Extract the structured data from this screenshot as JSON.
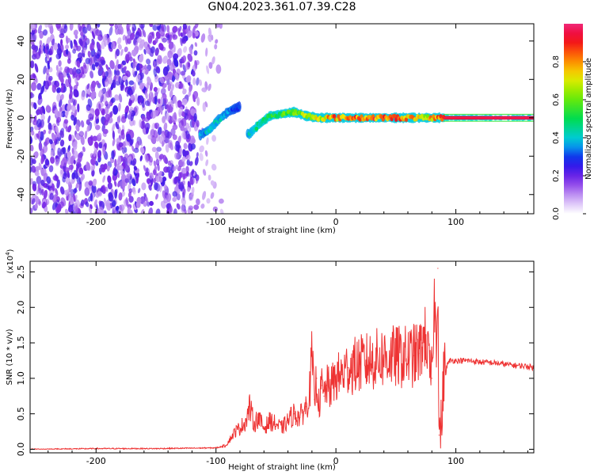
{
  "title": "GN04.2023.361.07.39.C28",
  "chart_data": [
    {
      "type": "heatmap",
      "title": "GN04.2023.361.07.39.C28",
      "xlabel": "Height of straight line (km)",
      "ylabel": "Frequency (Hz)",
      "xlim": [
        -255,
        165
      ],
      "ylim": [
        -50,
        49
      ],
      "x_ticks": [
        -200,
        -100,
        0,
        100
      ],
      "y_ticks": [
        -40,
        -20,
        0,
        20,
        40
      ],
      "x_tick_labels": [
        "-200",
        "-100",
        "0",
        "100"
      ],
      "y_tick_labels": [
        "-40",
        "-20",
        "0",
        "20",
        "40"
      ],
      "colorbar": {
        "label": "Normalized spectral amplitude",
        "range": [
          0,
          1
        ],
        "ticks": [
          0.0,
          0.2,
          0.4,
          0.6,
          0.8
        ],
        "tick_labels": [
          "0.0",
          "0.2",
          "0.4",
          "0.6",
          "0.8"
        ],
        "colormap": "rainbow"
      },
      "regions": [
        {
          "name": "noise",
          "x_range": [
            -255,
            -115
          ],
          "freq_range": [
            -50,
            49
          ],
          "amplitude": 0.1
        },
        {
          "name": "sparse",
          "x_range": [
            -115,
            -95
          ],
          "freq_range": [
            -50,
            49
          ],
          "amplitude": 0.03
        }
      ],
      "ridge": [
        {
          "x": -113,
          "f": -9,
          "amplitude": 0.35
        },
        {
          "x": -105,
          "f": -6,
          "amplitude": 0.4
        },
        {
          "x": -98,
          "f": -1,
          "amplitude": 0.4
        },
        {
          "x": -90,
          "f": 3,
          "amplitude": 0.35
        },
        {
          "x": -80,
          "f": 6,
          "amplitude": 0.3
        },
        {
          "x": -73,
          "f": -9,
          "amplitude": 0.4
        },
        {
          "x": -65,
          "f": -4,
          "amplitude": 0.45
        },
        {
          "x": -55,
          "f": 1,
          "amplitude": 0.5
        },
        {
          "x": -45,
          "f": 2,
          "amplitude": 0.55
        },
        {
          "x": -35,
          "f": 3,
          "amplitude": 0.6
        },
        {
          "x": -25,
          "f": 1,
          "amplitude": 0.65
        },
        {
          "x": -15,
          "f": 0,
          "amplitude": 0.7
        },
        {
          "x": 0,
          "f": 0,
          "amplitude": 0.8
        },
        {
          "x": 30,
          "f": 0,
          "amplitude": 0.85
        },
        {
          "x": 60,
          "f": 0,
          "amplitude": 0.8
        },
        {
          "x": 72,
          "f": 0,
          "amplitude": 0.65
        },
        {
          "x": 90,
          "f": 0,
          "amplitude": 0.9
        },
        {
          "x": 130,
          "f": 0,
          "amplitude": 0.95
        },
        {
          "x": 165,
          "f": 0,
          "amplitude": 0.95
        }
      ]
    },
    {
      "type": "line",
      "xlabel": "Height of straight line (km)",
      "ylabel": "SNR (10 * v/v)",
      "y_multiplier_label": "(x10",
      "y_multiplier_exponent": "4",
      "y_multiplier_close": ")",
      "xlim": [
        -255,
        165
      ],
      "ylim": [
        -0.05,
        2.65
      ],
      "x_ticks": [
        -200,
        -100,
        0,
        100
      ],
      "y_ticks": [
        0.0,
        0.5,
        1.0,
        1.5,
        2.0,
        2.5
      ],
      "x_tick_labels": [
        "-200",
        "-100",
        "0",
        "100"
      ],
      "y_tick_labels": [
        "0.0",
        "0.5",
        "1.0",
        "1.5",
        "2.0",
        "2.5"
      ],
      "color": "#ee3333",
      "series": [
        {
          "x": [
            -255,
            -200,
            -150,
            -100,
            -92,
            -88,
            -84,
            -80,
            -75,
            -72,
            -68,
            -65,
            -60,
            -55,
            -50,
            -45,
            -40,
            -35,
            -30,
            -25,
            -22,
            -20,
            -18,
            -16,
            -14,
            -12,
            -10,
            -8,
            -5,
            0,
            5,
            10,
            20,
            30,
            40,
            50,
            60,
            65,
            70,
            72,
            75,
            78,
            80,
            82,
            84,
            85,
            86,
            88,
            90,
            95,
            100,
            110,
            120,
            130,
            140,
            150,
            160,
            165
          ],
          "y": [
            0.0,
            0.01,
            0.01,
            0.02,
            0.05,
            0.15,
            0.25,
            0.3,
            0.4,
            0.6,
            0.35,
            0.45,
            0.3,
            0.4,
            0.35,
            0.3,
            0.4,
            0.5,
            0.45,
            0.6,
            0.8,
            1.3,
            0.7,
            1.0,
            0.6,
            0.9,
            0.75,
            0.9,
            0.85,
            1.0,
            1.05,
            1.15,
            1.2,
            1.25,
            1.3,
            1.3,
            1.3,
            1.32,
            1.35,
            1.5,
            1.6,
            1.1,
            1.0,
            2.1,
            1.5,
            2.55,
            0.2,
            0.3,
            1.1,
            1.25,
            1.25,
            1.25,
            1.23,
            1.22,
            1.2,
            1.18,
            1.17,
            1.15
          ]
        }
      ]
    }
  ]
}
